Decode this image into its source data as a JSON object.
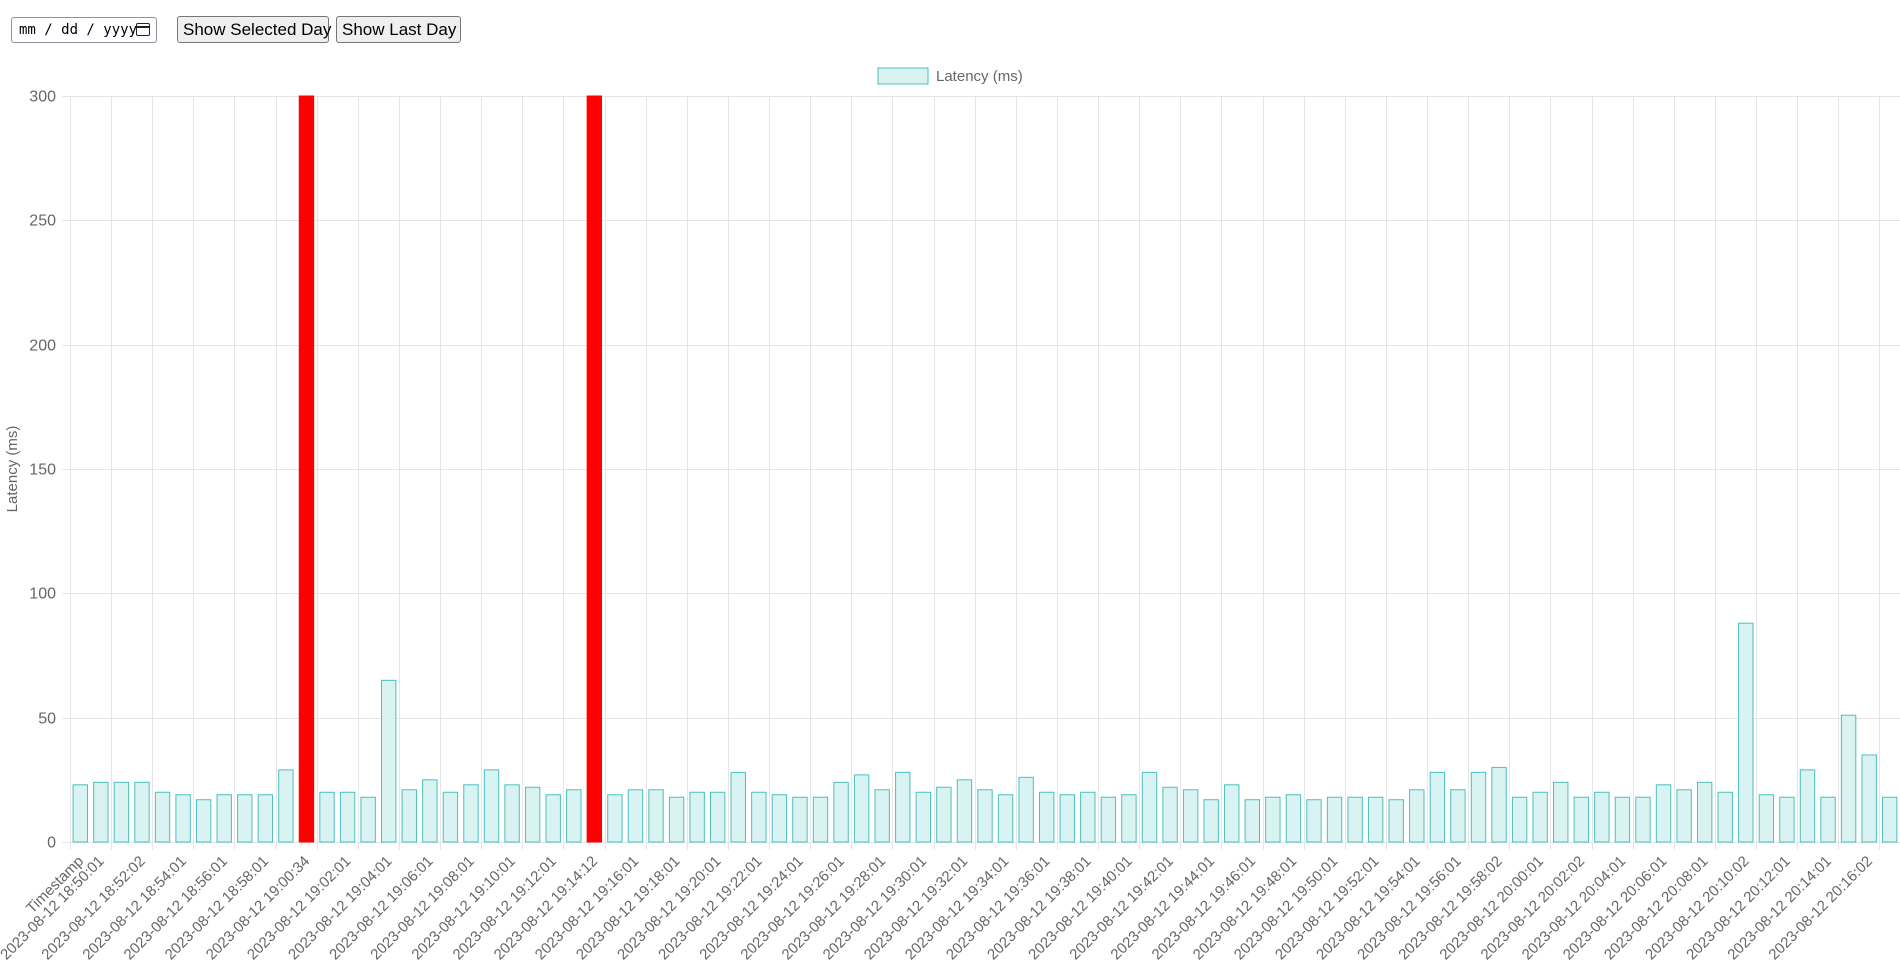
{
  "controls": {
    "date_placeholder": "mm / dd / yyyy",
    "show_selected_label": "Show Selected Day",
    "show_last_label": "Show Last Day"
  },
  "chart_data": {
    "type": "bar",
    "title": "",
    "xlabel": "",
    "ylabel": "Latency (ms)",
    "ylim": [
      0,
      300
    ],
    "yticks": [
      0,
      50,
      100,
      150,
      200,
      250,
      300
    ],
    "grid": true,
    "legend_position": "top-center",
    "colors": {
      "bar_fill": "#d9f2f2",
      "bar_stroke": "#4bc0c0",
      "highlight": "#ff0000",
      "grid": "#e5e5e5",
      "text": "#666666"
    },
    "series": [
      {
        "name": "Latency (ms)",
        "categories": [
          "Timestamp",
          "2023-08-12 18:50:01",
          "",
          "2023-08-12 18:52:02",
          "",
          "2023-08-12 18:54:01",
          "",
          "2023-08-12 18:56:01",
          "",
          "2023-08-12 18:58:01",
          "",
          "2023-08-12 19:00:34",
          "",
          "2023-08-12 19:02:01",
          "",
          "2023-08-12 19:04:01",
          "",
          "2023-08-12 19:06:01",
          "",
          "2023-08-12 19:08:01",
          "",
          "2023-08-12 19:10:01",
          "",
          "2023-08-12 19:12:01",
          "",
          "2023-08-12 19:14:12",
          "",
          "2023-08-12 19:16:01",
          "",
          "2023-08-12 19:18:01",
          "",
          "2023-08-12 19:20:01",
          "",
          "2023-08-12 19:22:01",
          "",
          "2023-08-12 19:24:01",
          "",
          "2023-08-12 19:26:01",
          "",
          "2023-08-12 19:28:01",
          "",
          "2023-08-12 19:30:01",
          "",
          "2023-08-12 19:32:01",
          "",
          "2023-08-12 19:34:01",
          "",
          "2023-08-12 19:36:01",
          "",
          "2023-08-12 19:38:01",
          "",
          "2023-08-12 19:40:01",
          "",
          "2023-08-12 19:42:01",
          "",
          "2023-08-12 19:44:01",
          "",
          "2023-08-12 19:46:01",
          "",
          "2023-08-12 19:48:01",
          "",
          "2023-08-12 19:50:01",
          "",
          "2023-08-12 19:52:01",
          "",
          "2023-08-12 19:54:01",
          "",
          "2023-08-12 19:56:01",
          "",
          "2023-08-12 19:58:02",
          "",
          "2023-08-12 20:00:01",
          "",
          "2023-08-12 20:02:02",
          "",
          "2023-08-12 20:04:01",
          "",
          "2023-08-12 20:06:01",
          "",
          "2023-08-12 20:08:01",
          "",
          "2023-08-12 20:10:02",
          "",
          "2023-08-12 20:12:01",
          "",
          "2023-08-12 20:14:01",
          "",
          "2023-08-12 20:16:02",
          ""
        ],
        "values": [
          23,
          24,
          24,
          24,
          20,
          19,
          17,
          19,
          19,
          19,
          29,
          300,
          20,
          20,
          18,
          65,
          21,
          25,
          20,
          23,
          29,
          23,
          22,
          19,
          21,
          300,
          19,
          21,
          21,
          18,
          20,
          20,
          28,
          20,
          19,
          18,
          18,
          24,
          27,
          21,
          28,
          20,
          22,
          25,
          21,
          19,
          26,
          20,
          19,
          20,
          18,
          19,
          28,
          22,
          21,
          17,
          23,
          17,
          18,
          19,
          17,
          18,
          18,
          18,
          17,
          21,
          28,
          21,
          28,
          30,
          18,
          20,
          24,
          18,
          20,
          18,
          18,
          23,
          21,
          24,
          20,
          88,
          19,
          18,
          29,
          18,
          51,
          35,
          18
        ],
        "highlight_indices": [
          11,
          25
        ]
      }
    ]
  }
}
